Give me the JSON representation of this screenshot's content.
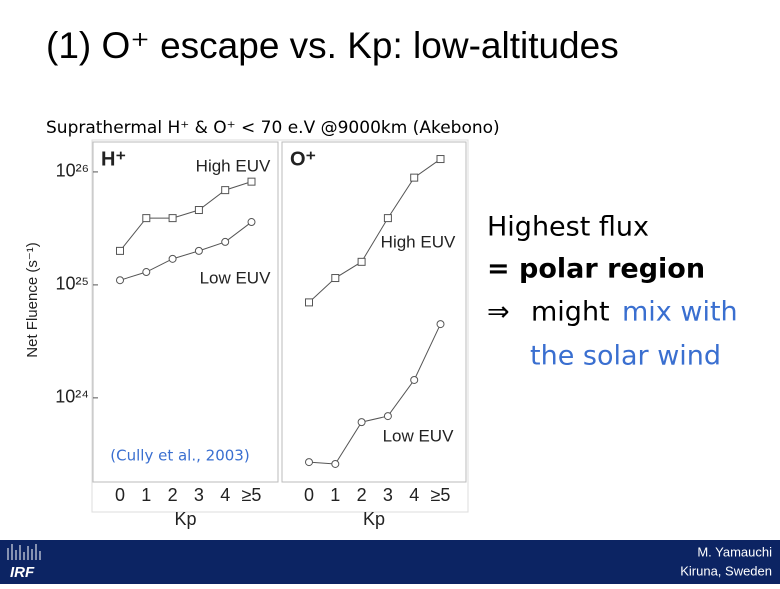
{
  "slide": {
    "title": "(1) O⁺ escape vs. Kp: low-altitudes",
    "subtitle": "Suprathermal H⁺ & O⁺ < 70 e.V @9000km (Akebono)",
    "notes": {
      "line1": "Highest flux",
      "line2": "= polar region",
      "arrow": "⇒",
      "might": "might",
      "mix": "mix with",
      "wind": "the solar wind"
    },
    "citation": "(Cully et al., 2003)",
    "logo": "IRF",
    "author": "M. Yamauchi",
    "place": "Kiruna, Sweden"
  },
  "chart_data": [
    {
      "type": "line",
      "title": "H⁺",
      "ylabel": "Net Fluence (s⁻¹)",
      "xlabel": "Kp",
      "categories": [
        "0",
        "1",
        "2",
        "3",
        "4",
        "≥5"
      ],
      "log_scale": true,
      "grid": false,
      "ylim": [
        1.8e+23,
        1.84e+26
      ],
      "yticks": [
        {
          "value": 1e+24,
          "label": "10²⁴"
        },
        {
          "value": 1e+25,
          "label": "10²⁵"
        },
        {
          "value": 1e+26,
          "label": "10²⁶"
        }
      ],
      "series": [
        {
          "name": "High EUV",
          "color": "#555555",
          "marker": "square",
          "values": [
            2e+25,
            3.9e+25,
            3.9e+25,
            4.6e+25,
            6.9e+25,
            8.2e+25
          ]
        },
        {
          "name": "Low EUV",
          "color": "#555555",
          "marker": "circle",
          "values": [
            1.1e+25,
            1.3e+25,
            1.7e+25,
            2e+25,
            2.4e+25,
            3.6e+25
          ]
        }
      ]
    },
    {
      "type": "line",
      "title": "O⁺",
      "xlabel": "Kp",
      "categories": [
        "0",
        "1",
        "2",
        "3",
        "4",
        "≥5"
      ],
      "log_scale": true,
      "grid": false,
      "ylim": [
        1.8e+23,
        1.84e+26
      ],
      "series": [
        {
          "name": "High EUV",
          "color": "#555555",
          "marker": "square",
          "values": [
            7e+24,
            1.15e+25,
            1.6e+25,
            3.9e+25,
            8.9e+25,
            1.3e+26
          ]
        },
        {
          "name": "Low EUV",
          "color": "#555555",
          "marker": "circle",
          "values": [
            2.7e+23,
            2.6e+23,
            6.1e+23,
            6.9e+23,
            1.44e+24,
            4.5e+24
          ]
        }
      ]
    }
  ]
}
